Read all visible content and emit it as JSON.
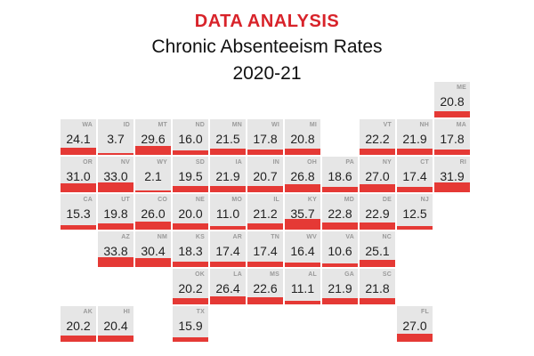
{
  "header": {
    "kicker": "DATA ANALYSIS",
    "title": "Chronic Absenteeism Rates",
    "years": "2020-21"
  },
  "colors": {
    "accent": "#d8232a",
    "bar": "#e53935",
    "tile": "#e6e6e6"
  },
  "chart_data": {
    "type": "tile-map",
    "title": "Chronic Absenteeism Rates",
    "subtitle": "2020-21",
    "states": [
      {
        "state": "ME",
        "value": 20.8,
        "row": 0,
        "col": 10
      },
      {
        "state": "WA",
        "value": 24.1,
        "row": 1,
        "col": 0
      },
      {
        "state": "ID",
        "value": 3.7,
        "row": 1,
        "col": 1
      },
      {
        "state": "MT",
        "value": 29.6,
        "row": 1,
        "col": 2
      },
      {
        "state": "ND",
        "value": 16.0,
        "row": 1,
        "col": 3
      },
      {
        "state": "MN",
        "value": 21.5,
        "row": 1,
        "col": 4
      },
      {
        "state": "WI",
        "value": 17.8,
        "row": 1,
        "col": 5
      },
      {
        "state": "MI",
        "value": 20.8,
        "row": 1,
        "col": 6
      },
      {
        "state": "VT",
        "value": 22.2,
        "row": 1,
        "col": 8
      },
      {
        "state": "NH",
        "value": 21.9,
        "row": 1,
        "col": 9
      },
      {
        "state": "MA",
        "value": 17.8,
        "row": 1,
        "col": 10
      },
      {
        "state": "OR",
        "value": 31.0,
        "row": 2,
        "col": 0
      },
      {
        "state": "NV",
        "value": 33.0,
        "row": 2,
        "col": 1
      },
      {
        "state": "WY",
        "value": 2.1,
        "row": 2,
        "col": 2
      },
      {
        "state": "SD",
        "value": 19.5,
        "row": 2,
        "col": 3
      },
      {
        "state": "IA",
        "value": 21.9,
        "row": 2,
        "col": 4
      },
      {
        "state": "IN",
        "value": 20.7,
        "row": 2,
        "col": 5
      },
      {
        "state": "OH",
        "value": 26.8,
        "row": 2,
        "col": 6
      },
      {
        "state": "PA",
        "value": 18.6,
        "row": 2,
        "col": 7
      },
      {
        "state": "NY",
        "value": 27.0,
        "row": 2,
        "col": 8
      },
      {
        "state": "CT",
        "value": 17.4,
        "row": 2,
        "col": 9
      },
      {
        "state": "RI",
        "value": 31.9,
        "row": 2,
        "col": 10
      },
      {
        "state": "CA",
        "value": 15.3,
        "row": 3,
        "col": 0
      },
      {
        "state": "UT",
        "value": 19.8,
        "row": 3,
        "col": 1
      },
      {
        "state": "CO",
        "value": 26.0,
        "row": 3,
        "col": 2
      },
      {
        "state": "NE",
        "value": 20.0,
        "row": 3,
        "col": 3
      },
      {
        "state": "MO",
        "value": 11.0,
        "row": 3,
        "col": 4
      },
      {
        "state": "IL",
        "value": 21.2,
        "row": 3,
        "col": 5
      },
      {
        "state": "KY",
        "value": 35.7,
        "row": 3,
        "col": 6
      },
      {
        "state": "MD",
        "value": 22.8,
        "row": 3,
        "col": 7
      },
      {
        "state": "DE",
        "value": 22.9,
        "row": 3,
        "col": 8
      },
      {
        "state": "NJ",
        "value": 12.5,
        "row": 3,
        "col": 9
      },
      {
        "state": "AZ",
        "value": 33.8,
        "row": 4,
        "col": 1
      },
      {
        "state": "NM",
        "value": 30.4,
        "row": 4,
        "col": 2
      },
      {
        "state": "KS",
        "value": 18.3,
        "row": 4,
        "col": 3
      },
      {
        "state": "AR",
        "value": 17.4,
        "row": 4,
        "col": 4
      },
      {
        "state": "TN",
        "value": 17.4,
        "row": 4,
        "col": 5
      },
      {
        "state": "WV",
        "value": 16.4,
        "row": 4,
        "col": 6
      },
      {
        "state": "VA",
        "value": 10.6,
        "row": 4,
        "col": 7
      },
      {
        "state": "NC",
        "value": 25.1,
        "row": 4,
        "col": 8
      },
      {
        "state": "OK",
        "value": 20.2,
        "row": 5,
        "col": 3
      },
      {
        "state": "LA",
        "value": 26.4,
        "row": 5,
        "col": 4
      },
      {
        "state": "MS",
        "value": 22.6,
        "row": 5,
        "col": 5
      },
      {
        "state": "AL",
        "value": 11.1,
        "row": 5,
        "col": 6
      },
      {
        "state": "GA",
        "value": 21.9,
        "row": 5,
        "col": 7
      },
      {
        "state": "SC",
        "value": 21.8,
        "row": 5,
        "col": 8
      },
      {
        "state": "AK",
        "value": 20.2,
        "row": 6,
        "col": 0
      },
      {
        "state": "HI",
        "value": 20.4,
        "row": 6,
        "col": 1
      },
      {
        "state": "TX",
        "value": 15.9,
        "row": 6,
        "col": 3
      },
      {
        "state": "FL",
        "value": 27.0,
        "row": 6,
        "col": 9
      }
    ]
  }
}
